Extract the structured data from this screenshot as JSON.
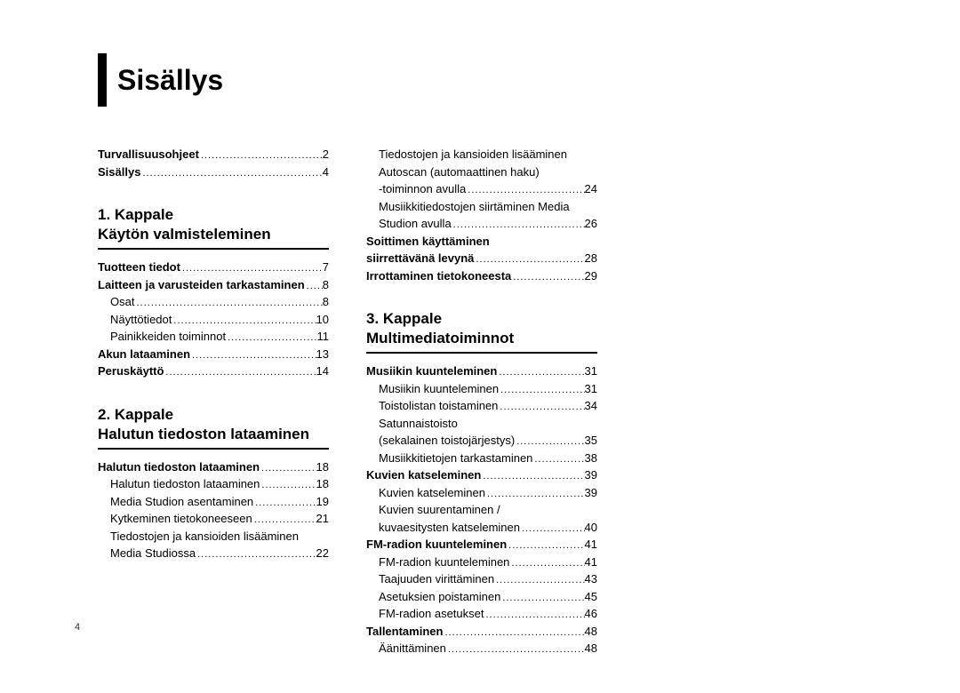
{
  "title": "Sisällys",
  "page_number": "4",
  "intro": [
    {
      "label": "Turvallisuusohjeet",
      "page": "2",
      "bold": true
    },
    {
      "label": "Sisällys",
      "page": "4",
      "bold": true
    }
  ],
  "chapters": [
    {
      "heading_line1": "1. Kappale",
      "heading_line2": "Käytön valmisteleminen",
      "items": [
        {
          "label": "Tuotteen tiedot",
          "page": "7",
          "bold": true
        },
        {
          "label": "Laitteen ja varusteiden tarkastaminen",
          "page": "8",
          "bold": true
        },
        {
          "label": "Osat",
          "page": "8",
          "sub": true
        },
        {
          "label": "Näyttötiedot",
          "page": "10",
          "sub": true
        },
        {
          "label": "Painikkeiden toiminnot",
          "page": "11",
          "sub": true
        },
        {
          "label": "Akun lataaminen",
          "page": "13",
          "bold": true
        },
        {
          "label": "Peruskäyttö",
          "page": "14",
          "bold": true
        }
      ]
    },
    {
      "heading_line1": "2. Kappale",
      "heading_line2": "Halutun tiedoston lataaminen",
      "items": [
        {
          "label": "Halutun tiedoston lataaminen",
          "page": "18",
          "bold": true
        },
        {
          "label": "Halutun tiedoston lataaminen",
          "page": "18",
          "sub": true
        },
        {
          "label": "Media Studion asentaminen",
          "page": "19",
          "sub": true
        },
        {
          "label": "Kytkeminen tietokoneeseen",
          "page": "21",
          "sub": true
        },
        {
          "label": "Tiedostojen ja kansioiden lisääminen",
          "sub": true,
          "wrap": true
        },
        {
          "label": "Media Studiossa",
          "page": "22",
          "sub": true
        }
      ]
    }
  ],
  "col2_pre": [
    {
      "label": "Tiedostojen ja kansioiden lisääminen",
      "sub": true,
      "wrap": true
    },
    {
      "label": "Autoscan (automaattinen haku)",
      "sub": true,
      "wrap": true
    },
    {
      "label": "-toiminnon avulla",
      "page": "24",
      "sub": true
    },
    {
      "label": "Musiikkitiedostojen siirtäminen Media",
      "sub": true,
      "wrap": true
    },
    {
      "label": "Studion avulla",
      "page": "26",
      "sub": true
    },
    {
      "label": "Soittimen käyttäminen",
      "bold": true,
      "wrap": true
    },
    {
      "label": "siirrettävänä levynä",
      "page": "28",
      "bold": true
    },
    {
      "label": "Irrottaminen tietokoneesta",
      "page": "29",
      "bold": true
    }
  ],
  "chapter3": {
    "heading_line1": "3. Kappale",
    "heading_line2": "Multimediatoiminnot",
    "items": [
      {
        "label": "Musiikin kuunteleminen",
        "page": "31",
        "bold": true
      },
      {
        "label": "Musiikin kuunteleminen",
        "page": "31",
        "sub": true
      },
      {
        "label": "Toistolistan toistaminen",
        "page": "34",
        "sub": true
      },
      {
        "label": "Satunnaistoisto",
        "sub": true,
        "wrap": true
      },
      {
        "label": "(sekalainen toistojärjestys)",
        "page": "35",
        "sub": true
      },
      {
        "label": "Musiikkitietojen tarkastaminen",
        "page": "38",
        "sub": true
      },
      {
        "label": "Kuvien katseleminen",
        "page": "39",
        "bold": true
      },
      {
        "label": "Kuvien katseleminen",
        "page": "39",
        "sub": true
      },
      {
        "label": "Kuvien suurentaminen /",
        "sub": true,
        "wrap": true
      },
      {
        "label": "kuvaesitysten katseleminen",
        "page": "40",
        "sub": true
      },
      {
        "label": "FM-radion kuunteleminen",
        "page": "41",
        "bold": true
      },
      {
        "label": "FM-radion kuunteleminen",
        "page": "41",
        "sub": true
      },
      {
        "label": "Taajuuden virittäminen",
        "page": "43",
        "sub": true
      },
      {
        "label": "Asetuksien poistaminen",
        "page": "45",
        "sub": true
      },
      {
        "label": "FM-radion asetukset",
        "page": "46",
        "sub": true
      },
      {
        "label": "Tallentaminen",
        "page": "48",
        "bold": true
      },
      {
        "label": "Äänittäminen",
        "page": "48",
        "sub": true
      }
    ]
  }
}
